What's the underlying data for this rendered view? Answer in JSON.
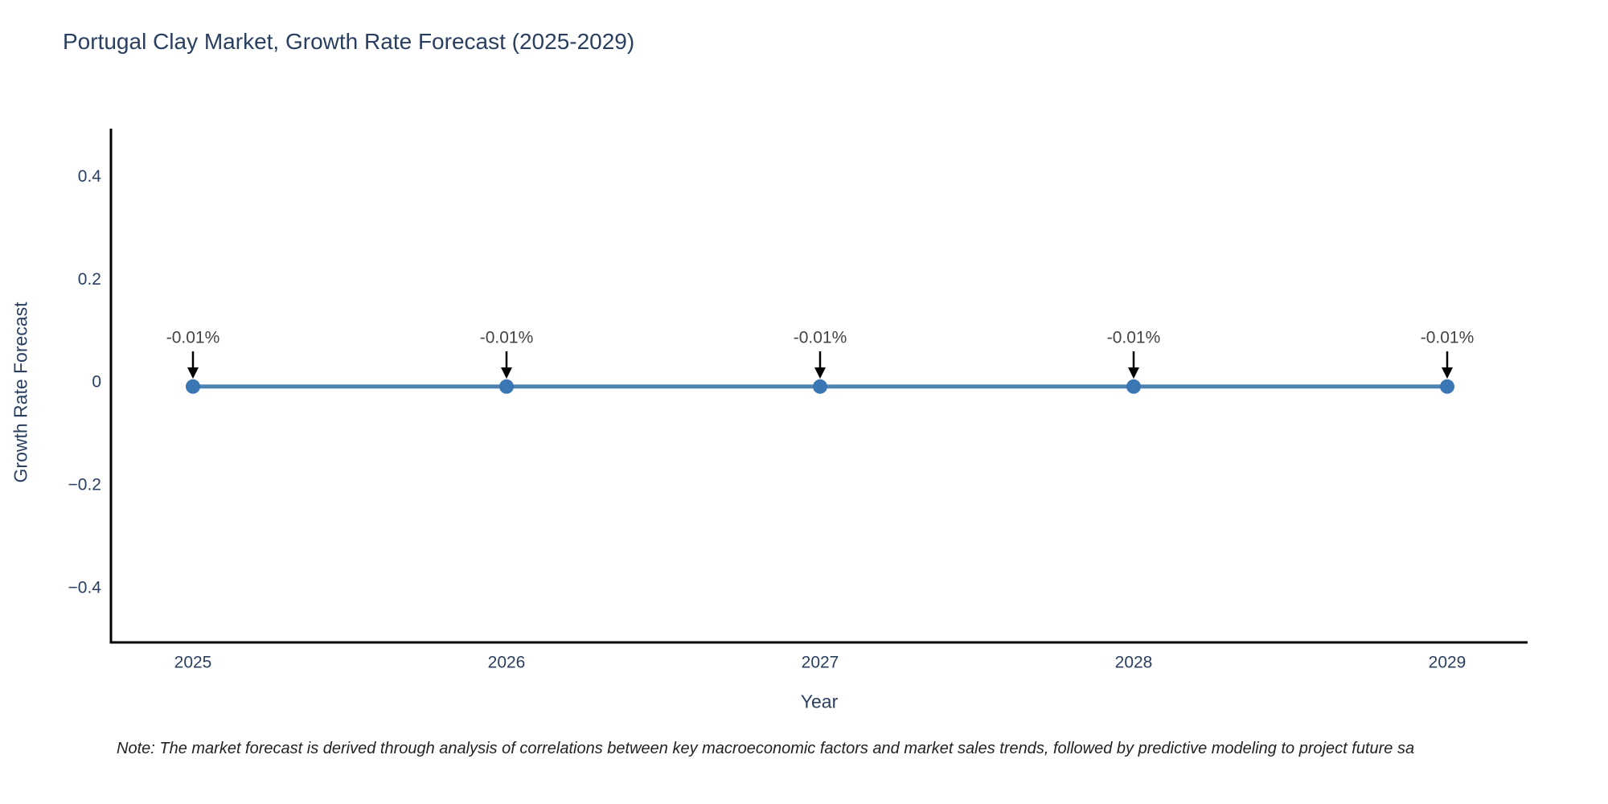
{
  "page": {
    "background": "#ffffff"
  },
  "chart_data": {
    "type": "line",
    "title": "Portugal Clay Market, Growth Rate Forecast (2025-2029)",
    "xlabel": "Year",
    "ylabel": "Growth Rate Forecast",
    "categories": [
      "2025",
      "2026",
      "2027",
      "2028",
      "2029"
    ],
    "series": [
      {
        "name": "Growth Rate Forecast",
        "values": [
          -0.01,
          -0.01,
          -0.01,
          -0.01,
          -0.01
        ]
      }
    ],
    "point_labels": [
      "-0.01%",
      "-0.01%",
      "-0.01%",
      "-0.01%",
      "-0.01%"
    ],
    "ylim": [
      -0.508,
      0.492
    ],
    "yticks": {
      "values": [
        0.4,
        0.2,
        0,
        -0.2,
        -0.4
      ],
      "labels": [
        "0.4",
        "0.2",
        "0",
        "−0.2",
        "−0.4"
      ]
    },
    "grid": false,
    "legend": "none",
    "colors": {
      "line": "#4e82b2",
      "marker": "#3a76b4",
      "axis": "#000000",
      "tick_label": "#2a3f5f",
      "title": "#2a3f5f",
      "annotation_text": "#444444",
      "arrow": "#000000"
    }
  },
  "note": {
    "text": "Note: The market forecast is derived through analysis of correlations between key macroeconomic factors and market sales trends, followed by predictive modeling to project future sa"
  }
}
